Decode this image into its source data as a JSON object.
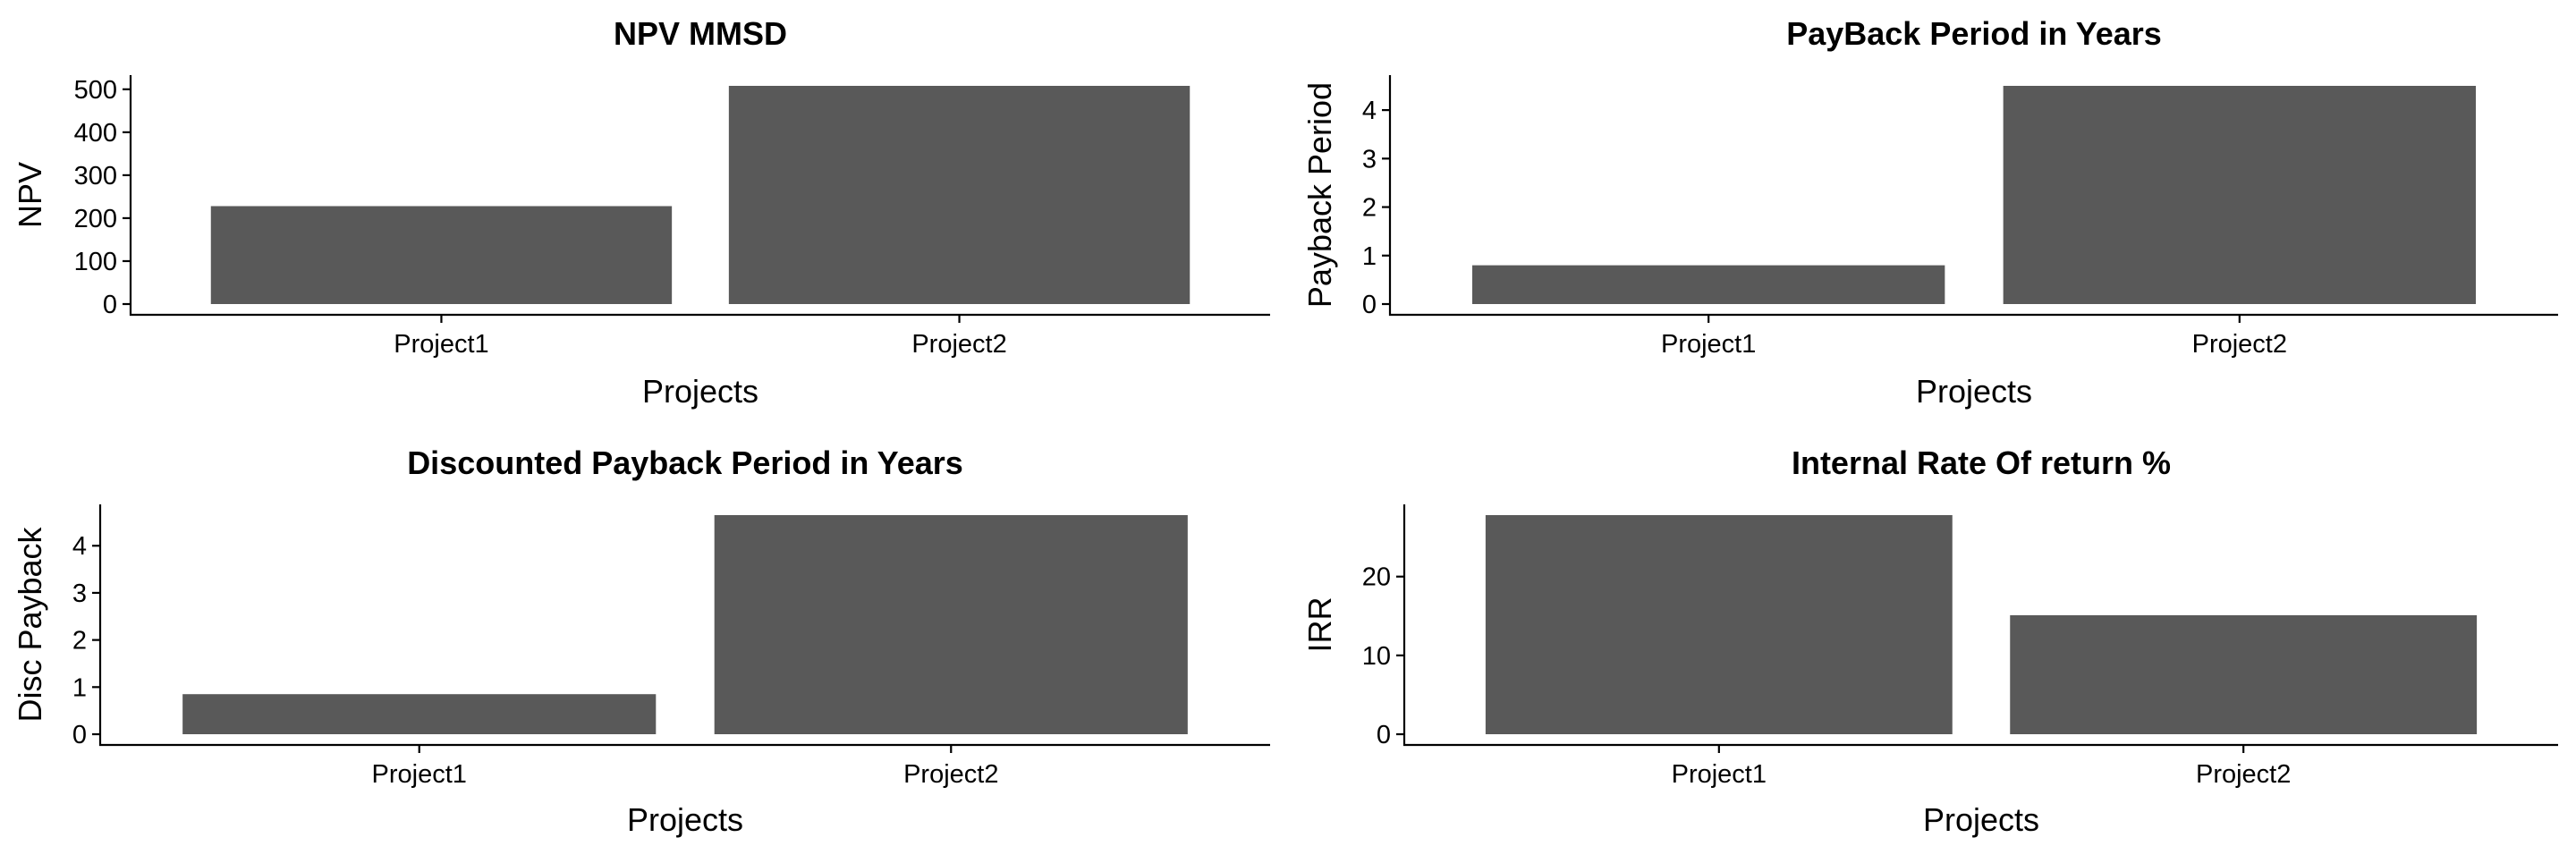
{
  "colors": {
    "bar": "#595959",
    "axis": "#000000",
    "text": "#000000",
    "background": "#ffffff"
  },
  "chart_data": [
    {
      "type": "bar",
      "title": "NPV MMSD",
      "xlabel": "Projects",
      "ylabel": "NPV",
      "categories": [
        "Project1",
        "Project2"
      ],
      "values": [
        228,
        508
      ],
      "ylim": [
        0,
        508
      ],
      "yticks": [
        0,
        100,
        200,
        300,
        400,
        500
      ],
      "grid": false,
      "legend": "none"
    },
    {
      "type": "bar",
      "title": "PayBack Period in Years",
      "xlabel": "Projects",
      "ylabel": "Payback Period",
      "categories": [
        "Project1",
        "Project2"
      ],
      "values": [
        0.8,
        4.5
      ],
      "ylim": [
        0,
        4.5
      ],
      "yticks": [
        0,
        1,
        2,
        3,
        4
      ],
      "grid": false,
      "legend": "none"
    },
    {
      "type": "bar",
      "title": "Discounted Payback Period in Years",
      "xlabel": "Projects",
      "ylabel": "Disc Payback",
      "categories": [
        "Project1",
        "Project2"
      ],
      "values": [
        0.85,
        4.65
      ],
      "ylim": [
        0,
        4.65
      ],
      "yticks": [
        0,
        1,
        2,
        3,
        4
      ],
      "grid": false,
      "legend": "none"
    },
    {
      "type": "bar",
      "title": "Internal Rate Of return %",
      "xlabel": "Projects",
      "ylabel": "IRR",
      "categories": [
        "Project1",
        "Project2"
      ],
      "values": [
        27.8,
        15.1
      ],
      "ylim": [
        0,
        27.8
      ],
      "yticks": [
        0,
        10,
        20
      ],
      "grid": false,
      "legend": "none"
    }
  ]
}
